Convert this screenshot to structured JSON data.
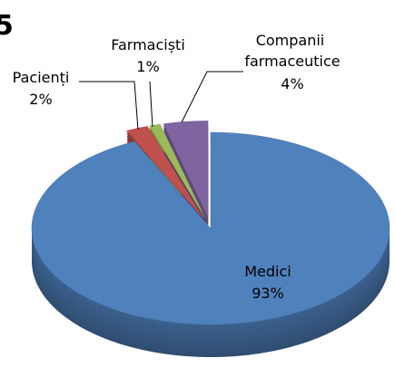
{
  "chart_data": {
    "type": "pie",
    "title": "5",
    "categories": [
      "Medici",
      "Pacienți",
      "Farmaciști",
      "Companii farmaceutice"
    ],
    "values": [
      93,
      2,
      1,
      4
    ],
    "value_labels": [
      "93%",
      "2%",
      "1%",
      "4%"
    ],
    "colors": [
      "#4f81bd",
      "#c0504d",
      "#9bbb59",
      "#8064a2"
    ],
    "exploded": [
      false,
      true,
      true,
      true
    ],
    "three_d": true
  }
}
